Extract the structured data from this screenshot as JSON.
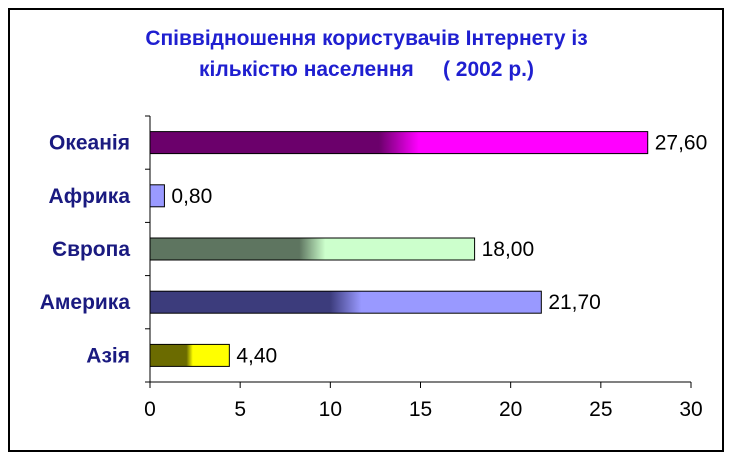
{
  "chart_data": {
    "type": "bar",
    "orientation": "horizontal",
    "title_lines": [
      "Співвідношення користувачів Інтернету із",
      "кількістю населення     ( 2002 р.)"
    ],
    "categories": [
      "Океанія",
      "Африка",
      "Європа",
      "Америка",
      "Азія"
    ],
    "values": [
      27.6,
      0.8,
      18.0,
      21.7,
      4.4
    ],
    "value_labels": [
      "27,60",
      "0,80",
      "18,00",
      "21,70",
      "4,40"
    ],
    "xlim": [
      0,
      30
    ],
    "x_ticks": [
      "0",
      "5",
      "10",
      "15",
      "20",
      "25",
      "30"
    ],
    "grid": false,
    "legend": "none",
    "colors": {
      "Океанія": [
        "#6b006b",
        "#ff00ff"
      ],
      "Африка": [
        "#9a9aff",
        "#9a9aff"
      ],
      "Європа": [
        "#5e7560",
        "#ccffcc"
      ],
      "Америка": [
        "#3c3c7c",
        "#9999ff"
      ],
      "Азія": [
        "#6b6b00",
        "#ffff00"
      ]
    },
    "title_color": "#1f1fd0",
    "category_label_color": "#1a1a80"
  }
}
